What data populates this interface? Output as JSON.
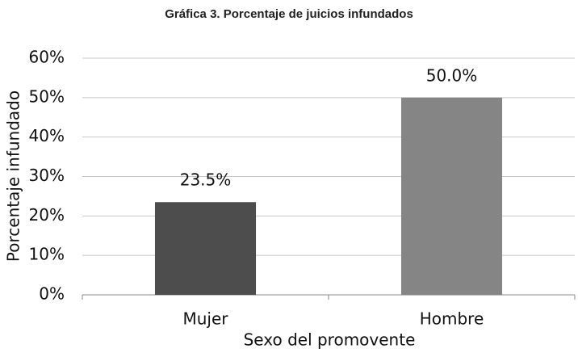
{
  "chart_data": {
    "type": "bar",
    "title": "Gráfica 3. Porcentaje de juicios infundados",
    "x_label": "Sexo del promovente",
    "y_label": "Porcentaje infundado",
    "categories": [
      "Mujer",
      "Hombre"
    ],
    "values": [
      23.5,
      50.0
    ],
    "value_labels": [
      "23.5%",
      "50.0%"
    ],
    "colors": [
      "#4d4d4d",
      "#858585"
    ],
    "ylim": [
      0,
      60
    ],
    "yticks": [
      {
        "value": 0,
        "label": "0%"
      },
      {
        "value": 10,
        "label": "10%"
      },
      {
        "value": 20,
        "label": "20%"
      },
      {
        "value": 30,
        "label": "30%"
      },
      {
        "value": 40,
        "label": "40%"
      },
      {
        "value": 50,
        "label": "50%"
      },
      {
        "value": 60,
        "label": "60%"
      }
    ],
    "grid": true
  }
}
